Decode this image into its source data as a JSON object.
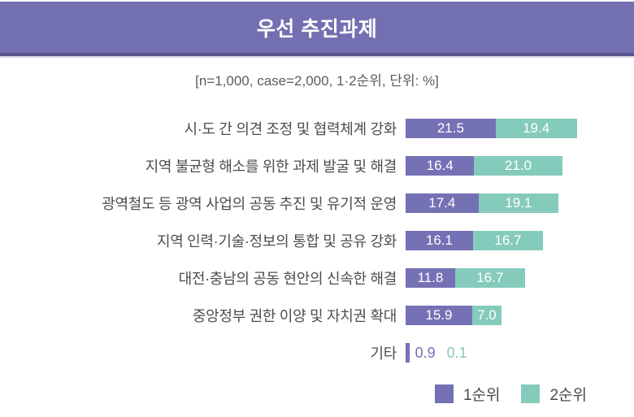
{
  "header": {
    "title": "우선 추진과제"
  },
  "subtitle": "[n=1,000, case=2,000, 1·2순위, 단위: %]",
  "colors": {
    "header_bg": "#7370b2",
    "header_border": "#55528c",
    "rank1": "#7471b5",
    "rank2": "#85cbbb",
    "label_text": "#4d4d4d",
    "value_text": "#ffffff"
  },
  "legend": [
    {
      "label": "1순위",
      "color": "#7471b5"
    },
    {
      "label": "2순위",
      "color": "#85cbbb"
    }
  ],
  "chart_data": {
    "type": "bar",
    "orientation": "horizontal",
    "stacked": true,
    "title": "우선 추진과제",
    "unit": "%",
    "n": "1,000",
    "case": "2,000",
    "categories": [
      "시·도 간 의견 조정 및 협력체계 강화",
      "지역 불균형 해소를 위한 과제 발굴 및 해결",
      "광역철도 등 광역 사업의 공동 추진 및 유기적 운영",
      "지역 인력·기술·정보의 통합 및 공유 강화",
      "대전·충남의 공동 현안의 신속한 해결",
      "중앙정부 권한 이양 및 자치권 확대",
      "기타"
    ],
    "series": [
      {
        "name": "1순위",
        "color": "#7471b5",
        "values": [
          21.5,
          16.4,
          17.4,
          16.1,
          11.8,
          15.9,
          0.9
        ]
      },
      {
        "name": "2순위",
        "color": "#85cbbb",
        "values": [
          19.4,
          21.0,
          19.1,
          16.7,
          16.7,
          7.0,
          0.1
        ]
      }
    ],
    "legend_position": "bottom-right",
    "grid": false
  }
}
